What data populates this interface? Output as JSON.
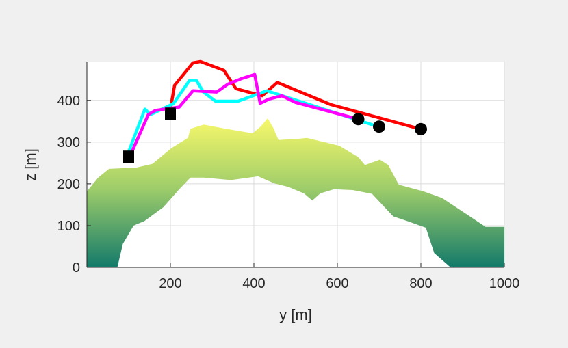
{
  "chart_data": {
    "type": "line",
    "title": "",
    "xlabel": "y [m]",
    "ylabel": "z [m]",
    "xlim": [
      0,
      1000
    ],
    "ylim": [
      0,
      493
    ],
    "grid": true,
    "xticks": [
      200,
      400,
      600,
      800,
      1000
    ],
    "xtick_labels": [
      "200",
      "400",
      "600",
      "800",
      "1000"
    ],
    "yticks": [
      0,
      100,
      200,
      300,
      400
    ],
    "ytick_labels": [
      "0",
      "100",
      "200",
      "300",
      "400"
    ],
    "terrain": {
      "colors": {
        "top": "#f2f56a",
        "mid": "#9fcd6a",
        "bottom": "#137a6a"
      },
      "outline": [
        [
          0,
          182
        ],
        [
          27,
          215
        ],
        [
          53,
          236
        ],
        [
          118,
          239
        ],
        [
          157,
          248
        ],
        [
          203,
          286
        ],
        [
          242,
          310
        ],
        [
          248,
          332
        ],
        [
          280,
          342
        ],
        [
          332,
          332
        ],
        [
          397,
          321
        ],
        [
          417,
          338
        ],
        [
          433,
          357
        ],
        [
          446,
          335
        ],
        [
          459,
          305
        ],
        [
          507,
          308
        ],
        [
          527,
          310
        ],
        [
          605,
          291
        ],
        [
          650,
          264
        ],
        [
          666,
          245
        ],
        [
          702,
          258
        ],
        [
          722,
          245
        ],
        [
          747,
          198
        ],
        [
          806,
          182
        ],
        [
          851,
          166
        ],
        [
          910,
          127
        ],
        [
          955,
          97
        ],
        [
          1000,
          97
        ],
        [
          1000,
          0
        ],
        [
          871,
          0
        ],
        [
          832,
          34
        ],
        [
          812,
          95
        ],
        [
          767,
          111
        ],
        [
          734,
          122
        ],
        [
          683,
          176
        ],
        [
          637,
          185
        ],
        [
          592,
          187
        ],
        [
          559,
          177
        ],
        [
          540,
          160
        ],
        [
          520,
          177
        ],
        [
          482,
          193
        ],
        [
          449,
          201
        ],
        [
          410,
          218
        ],
        [
          345,
          209
        ],
        [
          280,
          215
        ],
        [
          248,
          215
        ],
        [
          222,
          188
        ],
        [
          183,
          144
        ],
        [
          138,
          111
        ],
        [
          112,
          100
        ],
        [
          86,
          56
        ],
        [
          73,
          0
        ],
        [
          0,
          0
        ]
      ]
    },
    "series": [
      {
        "name": "red",
        "color": "#ff0000",
        "points": [
          [
            198,
            368
          ],
          [
            210,
            436
          ],
          [
            254,
            490
          ],
          [
            272,
            493
          ],
          [
            328,
            472
          ],
          [
            357,
            428
          ],
          [
            420,
            411
          ],
          [
            456,
            443
          ],
          [
            584,
            390
          ],
          [
            800,
            331
          ]
        ]
      },
      {
        "name": "cyan",
        "color": "#00ffff",
        "points": [
          [
            100,
            277
          ],
          [
            139,
            379
          ],
          [
            152,
            366
          ],
          [
            207,
            392
          ],
          [
            246,
            448
          ],
          [
            262,
            448
          ],
          [
            279,
            420
          ],
          [
            308,
            398
          ],
          [
            362,
            398
          ],
          [
            431,
            423
          ],
          [
            698,
            337
          ]
        ]
      },
      {
        "name": "magenta",
        "color": "#ff00ff",
        "points": [
          [
            100,
            259
          ],
          [
            147,
            366
          ],
          [
            164,
            376
          ],
          [
            221,
            384
          ],
          [
            254,
            423
          ],
          [
            311,
            420
          ],
          [
            338,
            439
          ],
          [
            370,
            452
          ],
          [
            402,
            462
          ],
          [
            415,
            393
          ],
          [
            436,
            403
          ],
          [
            467,
            411
          ],
          [
            500,
            395
          ],
          [
            650,
            355
          ]
        ]
      }
    ],
    "start_markers": [
      [
        100,
        265
      ],
      [
        200,
        368
      ]
    ],
    "end_markers": [
      [
        650,
        355
      ],
      [
        700,
        337
      ],
      [
        800,
        331
      ]
    ]
  }
}
